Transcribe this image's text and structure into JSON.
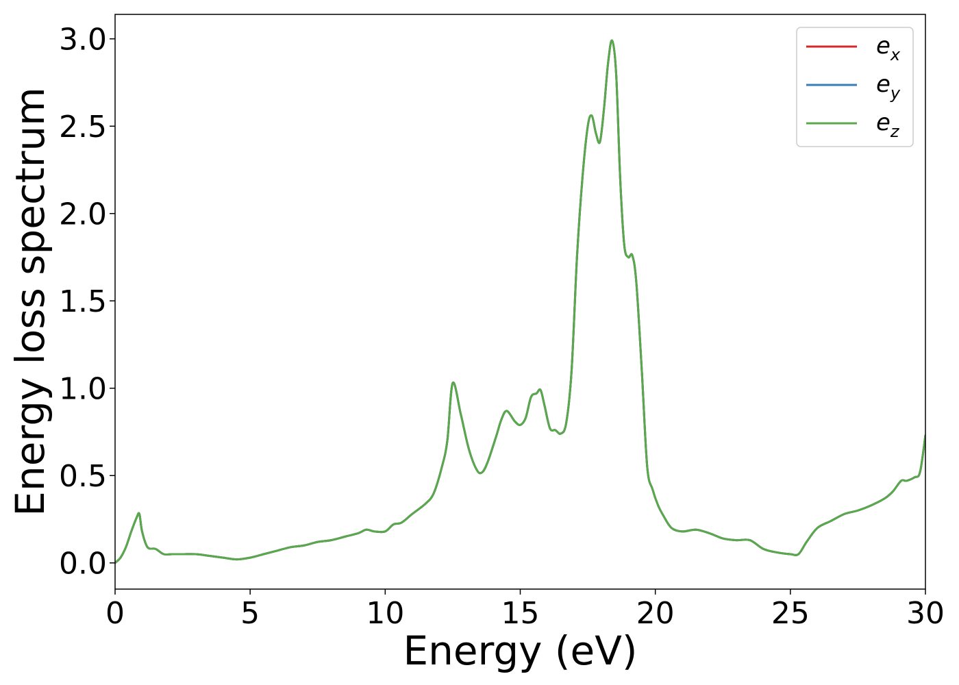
{
  "chart_data": {
    "type": "line",
    "xlabel": "Energy (eV)",
    "ylabel": "Energy loss spectrum",
    "xlim": [
      0,
      30
    ],
    "ylim": [
      -0.15,
      3.14
    ],
    "xticks": [
      0,
      5,
      10,
      15,
      20,
      25,
      30
    ],
    "yticks": [
      0.0,
      0.5,
      1.0,
      1.5,
      2.0,
      2.5,
      3.0
    ],
    "xtick_labels": [
      "0",
      "5",
      "10",
      "15",
      "20",
      "25",
      "30"
    ],
    "ytick_labels": [
      "0.0",
      "0.5",
      "1.0",
      "1.5",
      "2.0",
      "2.5",
      "3.0"
    ],
    "grid": false,
    "legend": "top-right",
    "series": [
      {
        "name": "e",
        "subscript": "x",
        "color": "#d62728",
        "x": [
          0,
          0.2,
          0.4,
          0.6,
          0.8,
          0.9,
          1.0,
          1.2,
          1.5,
          1.8,
          2.1,
          2.5,
          3.0,
          3.5,
          4.0,
          4.5,
          5.0,
          5.5,
          6.0,
          6.5,
          7.0,
          7.5,
          8.0,
          8.5,
          9.0,
          9.3,
          9.6,
          10.0,
          10.3,
          10.6,
          11.0,
          11.5,
          11.8,
          12.1,
          12.3,
          12.5,
          12.8,
          13.1,
          13.4,
          13.6,
          13.8,
          14.1,
          14.3,
          14.5,
          14.8,
          15.0,
          15.2,
          15.4,
          15.6,
          15.75,
          15.9,
          16.1,
          16.3,
          16.5,
          16.7,
          16.9,
          17.1,
          17.3,
          17.5,
          17.65,
          17.8,
          17.95,
          18.1,
          18.25,
          18.4,
          18.55,
          18.7,
          18.85,
          19.0,
          19.15,
          19.3,
          19.5,
          19.7,
          19.9,
          20.1,
          20.3,
          20.6,
          21.0,
          21.5,
          22.0,
          22.5,
          23.0,
          23.5,
          24.0,
          24.5,
          25.0,
          25.3,
          25.6,
          26.0,
          26.5,
          27.0,
          27.5,
          28.0,
          28.5,
          28.8,
          29.1,
          29.3,
          29.6,
          29.8,
          30.0
        ],
        "y": [
          0.0,
          0.03,
          0.09,
          0.18,
          0.26,
          0.28,
          0.18,
          0.09,
          0.08,
          0.05,
          0.05,
          0.05,
          0.05,
          0.04,
          0.03,
          0.02,
          0.03,
          0.05,
          0.07,
          0.09,
          0.1,
          0.12,
          0.13,
          0.15,
          0.17,
          0.19,
          0.18,
          0.18,
          0.22,
          0.23,
          0.28,
          0.34,
          0.4,
          0.55,
          0.7,
          1.03,
          0.85,
          0.65,
          0.53,
          0.52,
          0.58,
          0.72,
          0.82,
          0.87,
          0.81,
          0.79,
          0.83,
          0.95,
          0.97,
          0.99,
          0.9,
          0.77,
          0.76,
          0.74,
          0.8,
          1.1,
          1.75,
          2.2,
          2.5,
          2.56,
          2.46,
          2.41,
          2.6,
          2.86,
          2.99,
          2.8,
          2.2,
          1.82,
          1.75,
          1.76,
          1.6,
          1.1,
          0.55,
          0.42,
          0.33,
          0.27,
          0.2,
          0.18,
          0.19,
          0.17,
          0.14,
          0.13,
          0.13,
          0.08,
          0.06,
          0.05,
          0.05,
          0.12,
          0.2,
          0.24,
          0.28,
          0.3,
          0.33,
          0.37,
          0.41,
          0.47,
          0.47,
          0.49,
          0.52,
          0.73
        ]
      },
      {
        "name": "e",
        "subscript": "y",
        "color": "#377eb8",
        "x": [
          0,
          0.2,
          0.4,
          0.6,
          0.8,
          0.9,
          1.0,
          1.2,
          1.5,
          1.8,
          2.1,
          2.5,
          3.0,
          3.5,
          4.0,
          4.5,
          5.0,
          5.5,
          6.0,
          6.5,
          7.0,
          7.5,
          8.0,
          8.5,
          9.0,
          9.3,
          9.6,
          10.0,
          10.3,
          10.6,
          11.0,
          11.5,
          11.8,
          12.1,
          12.3,
          12.5,
          12.8,
          13.1,
          13.4,
          13.6,
          13.8,
          14.1,
          14.3,
          14.5,
          14.8,
          15.0,
          15.2,
          15.4,
          15.6,
          15.75,
          15.9,
          16.1,
          16.3,
          16.5,
          16.7,
          16.9,
          17.1,
          17.3,
          17.5,
          17.65,
          17.8,
          17.95,
          18.1,
          18.25,
          18.4,
          18.55,
          18.7,
          18.85,
          19.0,
          19.15,
          19.3,
          19.5,
          19.7,
          19.9,
          20.1,
          20.3,
          20.6,
          21.0,
          21.5,
          22.0,
          22.5,
          23.0,
          23.5,
          24.0,
          24.5,
          25.0,
          25.3,
          25.6,
          26.0,
          26.5,
          27.0,
          27.5,
          28.0,
          28.5,
          28.8,
          29.1,
          29.3,
          29.6,
          29.8,
          30.0
        ],
        "y": [
          0.0,
          0.03,
          0.09,
          0.18,
          0.26,
          0.28,
          0.18,
          0.09,
          0.08,
          0.05,
          0.05,
          0.05,
          0.05,
          0.04,
          0.03,
          0.02,
          0.03,
          0.05,
          0.07,
          0.09,
          0.1,
          0.12,
          0.13,
          0.15,
          0.17,
          0.19,
          0.18,
          0.18,
          0.22,
          0.23,
          0.28,
          0.34,
          0.4,
          0.55,
          0.7,
          1.03,
          0.85,
          0.65,
          0.53,
          0.52,
          0.58,
          0.72,
          0.82,
          0.87,
          0.81,
          0.79,
          0.83,
          0.95,
          0.97,
          0.99,
          0.9,
          0.77,
          0.76,
          0.74,
          0.8,
          1.1,
          1.75,
          2.2,
          2.5,
          2.56,
          2.46,
          2.41,
          2.6,
          2.86,
          2.99,
          2.8,
          2.2,
          1.82,
          1.75,
          1.76,
          1.6,
          1.1,
          0.55,
          0.42,
          0.33,
          0.27,
          0.2,
          0.18,
          0.19,
          0.17,
          0.14,
          0.13,
          0.13,
          0.08,
          0.06,
          0.05,
          0.05,
          0.12,
          0.2,
          0.24,
          0.28,
          0.3,
          0.33,
          0.37,
          0.41,
          0.47,
          0.47,
          0.49,
          0.52,
          0.73
        ]
      },
      {
        "name": "e",
        "subscript": "z",
        "color": "#59a84b",
        "x": [
          0,
          0.2,
          0.4,
          0.6,
          0.8,
          0.9,
          1.0,
          1.2,
          1.5,
          1.8,
          2.1,
          2.5,
          3.0,
          3.5,
          4.0,
          4.5,
          5.0,
          5.5,
          6.0,
          6.5,
          7.0,
          7.5,
          8.0,
          8.5,
          9.0,
          9.3,
          9.6,
          10.0,
          10.3,
          10.6,
          11.0,
          11.5,
          11.8,
          12.1,
          12.3,
          12.5,
          12.8,
          13.1,
          13.4,
          13.6,
          13.8,
          14.1,
          14.3,
          14.5,
          14.8,
          15.0,
          15.2,
          15.4,
          15.6,
          15.75,
          15.9,
          16.1,
          16.3,
          16.5,
          16.7,
          16.9,
          17.1,
          17.3,
          17.5,
          17.65,
          17.8,
          17.95,
          18.1,
          18.25,
          18.4,
          18.55,
          18.7,
          18.85,
          19.0,
          19.15,
          19.3,
          19.5,
          19.7,
          19.9,
          20.1,
          20.3,
          20.6,
          21.0,
          21.5,
          22.0,
          22.5,
          23.0,
          23.5,
          24.0,
          24.5,
          25.0,
          25.3,
          25.6,
          26.0,
          26.5,
          27.0,
          27.5,
          28.0,
          28.5,
          28.8,
          29.1,
          29.3,
          29.6,
          29.8,
          30.0
        ],
        "y": [
          0.0,
          0.03,
          0.09,
          0.18,
          0.26,
          0.28,
          0.18,
          0.09,
          0.08,
          0.05,
          0.05,
          0.05,
          0.05,
          0.04,
          0.03,
          0.02,
          0.03,
          0.05,
          0.07,
          0.09,
          0.1,
          0.12,
          0.13,
          0.15,
          0.17,
          0.19,
          0.18,
          0.18,
          0.22,
          0.23,
          0.28,
          0.34,
          0.4,
          0.55,
          0.7,
          1.03,
          0.85,
          0.65,
          0.53,
          0.52,
          0.58,
          0.72,
          0.82,
          0.87,
          0.81,
          0.79,
          0.83,
          0.95,
          0.97,
          0.99,
          0.9,
          0.77,
          0.76,
          0.74,
          0.8,
          1.1,
          1.75,
          2.2,
          2.5,
          2.56,
          2.46,
          2.41,
          2.6,
          2.86,
          2.99,
          2.8,
          2.2,
          1.82,
          1.75,
          1.76,
          1.6,
          1.1,
          0.55,
          0.42,
          0.33,
          0.27,
          0.2,
          0.18,
          0.19,
          0.17,
          0.14,
          0.13,
          0.13,
          0.08,
          0.06,
          0.05,
          0.05,
          0.12,
          0.2,
          0.24,
          0.28,
          0.3,
          0.33,
          0.37,
          0.41,
          0.47,
          0.47,
          0.49,
          0.52,
          0.73
        ]
      }
    ]
  }
}
